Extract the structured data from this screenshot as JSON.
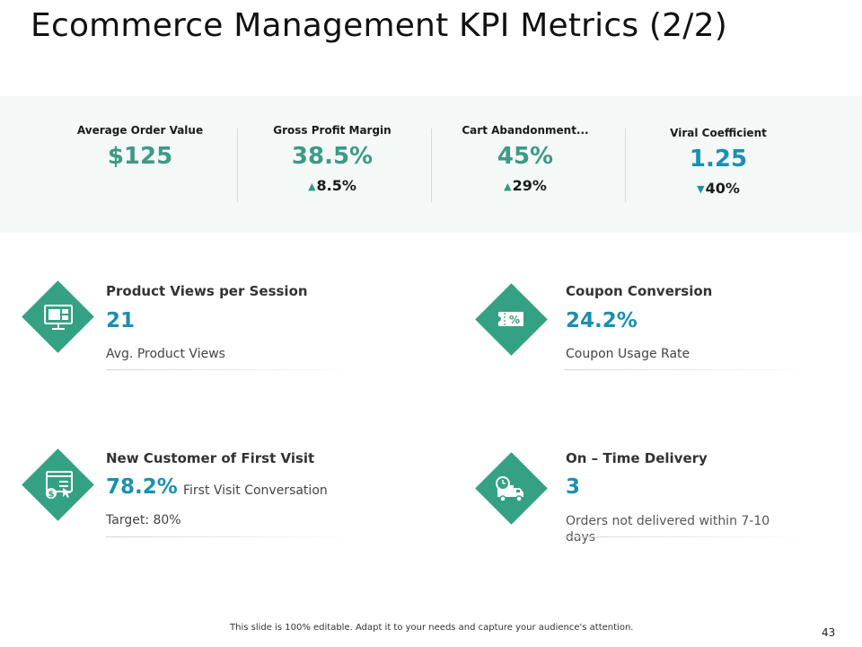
{
  "page": {
    "title": "Ecommerce Management KPI Metrics (2/2)"
  },
  "kpis": [
    {
      "label": "Average Order Value",
      "value": "$125",
      "change": "",
      "direction": ""
    },
    {
      "label": "Gross Profit Margin",
      "value": "38.5%",
      "change": "8.5%",
      "direction": "up"
    },
    {
      "label": "Cart Abandonment...",
      "value": "45%",
      "change": "29%",
      "direction": "up"
    },
    {
      "label": "Viral Coefficient",
      "value": "1.25",
      "change": "40%",
      "direction": "down"
    }
  ],
  "cards": {
    "product_views": {
      "heading": "Product Views per Session",
      "value": "21",
      "description": "Avg. Product Views",
      "icon": "monitor-cart-icon"
    },
    "coupon": {
      "heading": "Coupon Conversion",
      "value": "24.2%",
      "description": "Coupon Usage Rate",
      "icon": "coupon-icon"
    },
    "new_customer": {
      "heading": "New Customer of First Visit",
      "value": "78.2%",
      "value_suffix": "First Visit Conversation",
      "description": "Target: 80%",
      "icon": "browser-payment-icon"
    },
    "delivery": {
      "heading": "On – Time Delivery",
      "value": "3",
      "description": "Orders not delivered within 7-10 days",
      "icon": "delivery-truck-icon"
    }
  },
  "footer": {
    "note": "This slide is 100% editable. Adapt it to your needs and capture your audience's attention.",
    "page_number": "43"
  },
  "colors": {
    "accent_green": "#35a184",
    "value_teal": "#3d9a85",
    "value_blue": "#1b8fb0",
    "band_bg": "#f4f8f7"
  }
}
